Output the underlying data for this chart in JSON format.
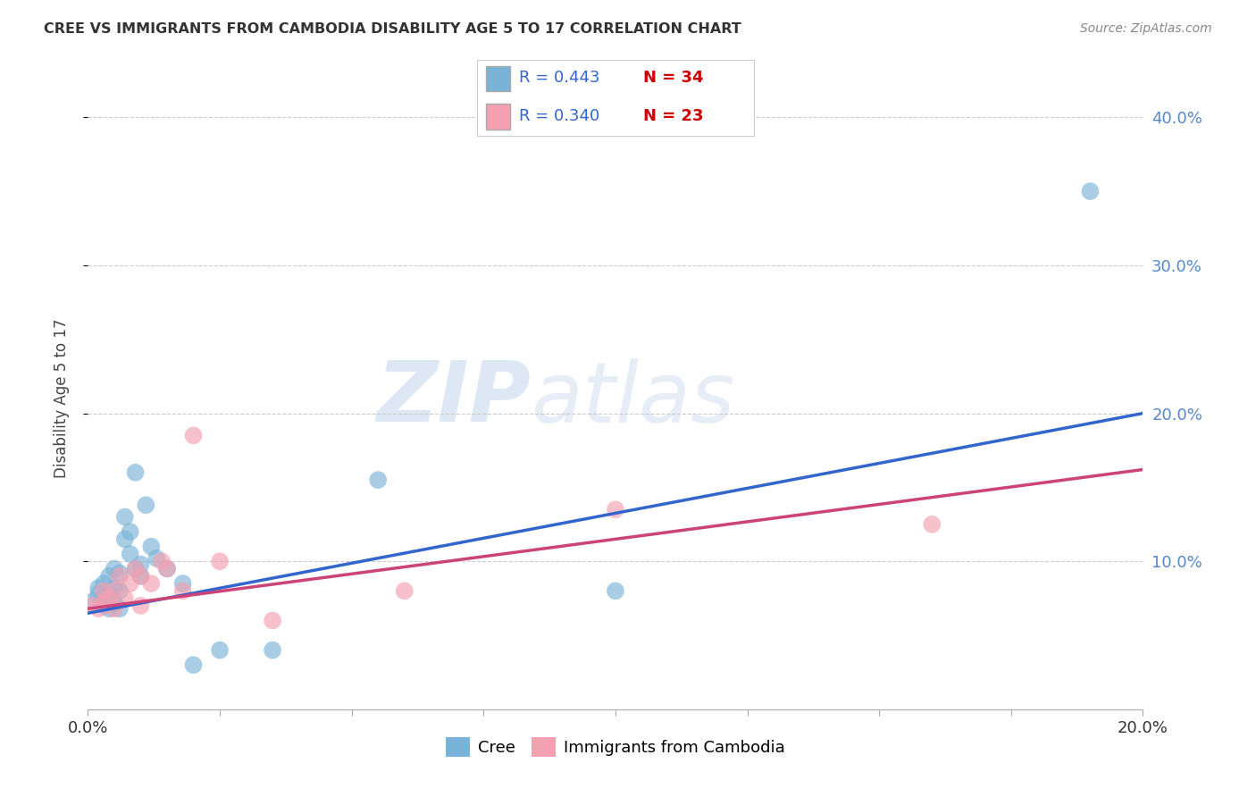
{
  "title": "CREE VS IMMIGRANTS FROM CAMBODIA DISABILITY AGE 5 TO 17 CORRELATION CHART",
  "source": "Source: ZipAtlas.com",
  "ylabel": "Disability Age 5 to 17",
  "xlim": [
    0.0,
    0.2
  ],
  "ylim": [
    0.0,
    0.42
  ],
  "xticks": [
    0.0,
    0.025,
    0.05,
    0.075,
    0.1,
    0.125,
    0.15,
    0.175,
    0.2
  ],
  "xtick_labels": [
    "0.0%",
    "",
    "",
    "",
    "",
    "",
    "",
    "",
    "20.0%"
  ],
  "yticks_right": [
    0.1,
    0.2,
    0.3,
    0.4
  ],
  "ytick_labels_right": [
    "10.0%",
    "20.0%",
    "30.0%",
    "40.0%"
  ],
  "blue_color": "#7ab3d8",
  "pink_color": "#f4a0b0",
  "blue_line_color": "#3366cc",
  "pink_line_color": "#cc4477",
  "right_axis_color": "#5588cc",
  "watermark_zip": "ZIP",
  "watermark_atlas": "atlas",
  "blue_scatter_x": [
    0.001,
    0.002,
    0.002,
    0.003,
    0.003,
    0.003,
    0.004,
    0.004,
    0.004,
    0.005,
    0.005,
    0.005,
    0.006,
    0.006,
    0.006,
    0.007,
    0.007,
    0.008,
    0.008,
    0.009,
    0.009,
    0.01,
    0.01,
    0.011,
    0.012,
    0.013,
    0.015,
    0.018,
    0.02,
    0.025,
    0.035,
    0.055,
    0.1,
    0.19
  ],
  "blue_scatter_y": [
    0.073,
    0.078,
    0.082,
    0.07,
    0.075,
    0.085,
    0.068,
    0.078,
    0.09,
    0.072,
    0.082,
    0.095,
    0.068,
    0.08,
    0.092,
    0.115,
    0.13,
    0.105,
    0.12,
    0.095,
    0.16,
    0.09,
    0.098,
    0.138,
    0.11,
    0.102,
    0.095,
    0.085,
    0.03,
    0.04,
    0.04,
    0.155,
    0.08,
    0.35
  ],
  "pink_scatter_x": [
    0.001,
    0.002,
    0.003,
    0.003,
    0.004,
    0.005,
    0.005,
    0.006,
    0.007,
    0.008,
    0.009,
    0.01,
    0.01,
    0.012,
    0.014,
    0.015,
    0.018,
    0.02,
    0.025,
    0.035,
    0.06,
    0.1,
    0.16
  ],
  "pink_scatter_y": [
    0.07,
    0.068,
    0.072,
    0.08,
    0.075,
    0.068,
    0.08,
    0.09,
    0.075,
    0.085,
    0.095,
    0.07,
    0.09,
    0.085,
    0.1,
    0.095,
    0.08,
    0.185,
    0.1,
    0.06,
    0.08,
    0.135,
    0.125
  ],
  "blue_line_x": [
    0.0,
    0.2
  ],
  "blue_line_y": [
    0.065,
    0.2
  ],
  "pink_line_x": [
    0.0,
    0.2
  ],
  "pink_line_y": [
    0.068,
    0.162
  ],
  "grid_color": "#cccccc",
  "bg_color": "#ffffff",
  "legend_R_color": "#3366cc",
  "legend_N_color": "#cc0000"
}
